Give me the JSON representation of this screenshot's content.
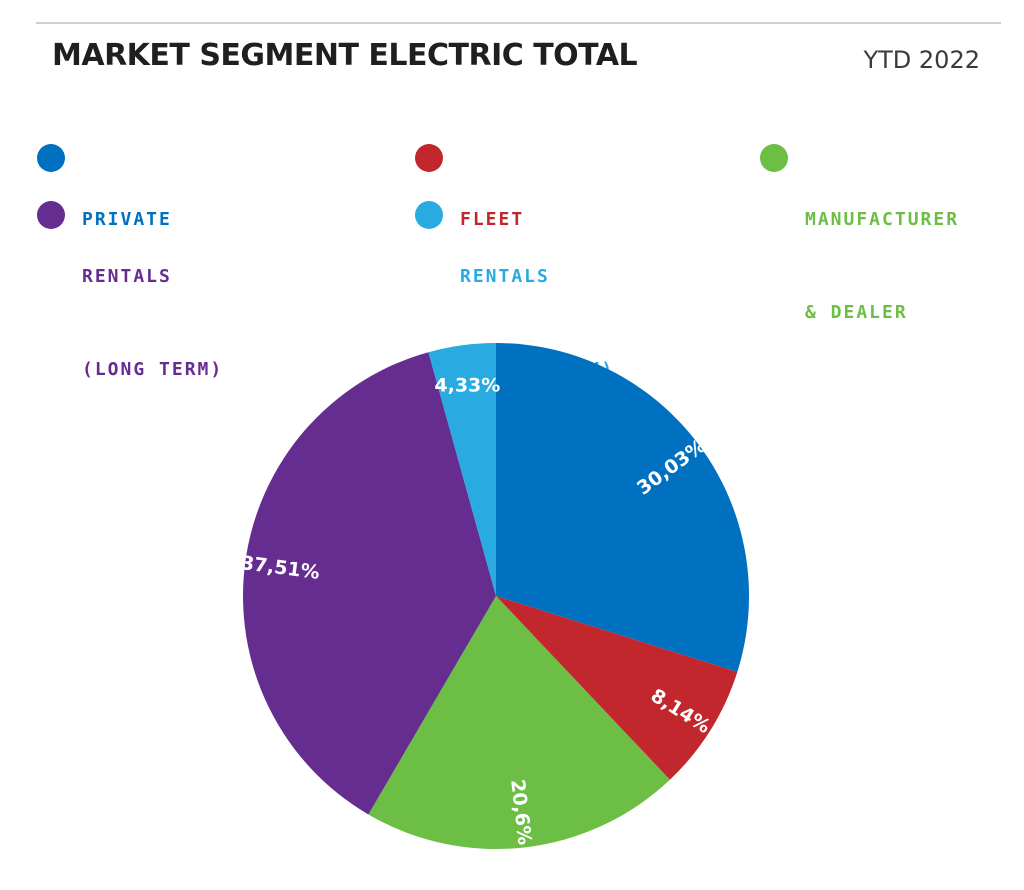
{
  "header": {
    "title": "MARKET SEGMENT ELECTRIC TOTAL",
    "period": "YTD 2022"
  },
  "legend": [
    {
      "key": "private",
      "lines": [
        "PRIVATE"
      ],
      "color": "#0070c0"
    },
    {
      "key": "fleet",
      "lines": [
        "FLEET"
      ],
      "color": "#c1272d"
    },
    {
      "key": "manufacturer-dealer",
      "lines": [
        "MANUFACTURER",
        "& DEALER"
      ],
      "color": "#6cbe45"
    },
    {
      "key": "rentals-long",
      "lines": [
        "RENTALS",
        "(LONG TERM)"
      ],
      "color": "#662d91"
    },
    {
      "key": "rentals-short",
      "lines": [
        "RENTALS",
        "(SHORT TERM)"
      ],
      "color": "#29abe2"
    }
  ],
  "chart_data": {
    "type": "pie",
    "title": "MARKET SEGMENT ELECTRIC TOTAL",
    "subtitle": "YTD 2022",
    "slices": [
      {
        "name": "Private",
        "value": 30.03,
        "label": "30,03%",
        "color": "#0070c0"
      },
      {
        "name": "Fleet",
        "value": 8.14,
        "label": "8,14%",
        "color": "#c1272d"
      },
      {
        "name": "Manufacturer & Dealer",
        "value": 20.6,
        "label": "20,6%",
        "color": "#6cbe45"
      },
      {
        "name": "Rentals (Long Term)",
        "value": 37.51,
        "label": "37,51%",
        "color": "#662d91"
      },
      {
        "name": "Rentals (Short Term)",
        "value": 4.33,
        "label": "4,33%",
        "color": "#29abe2"
      }
    ],
    "start_angle": "12 o'clock",
    "direction": "clockwise",
    "legend_position": "top"
  }
}
